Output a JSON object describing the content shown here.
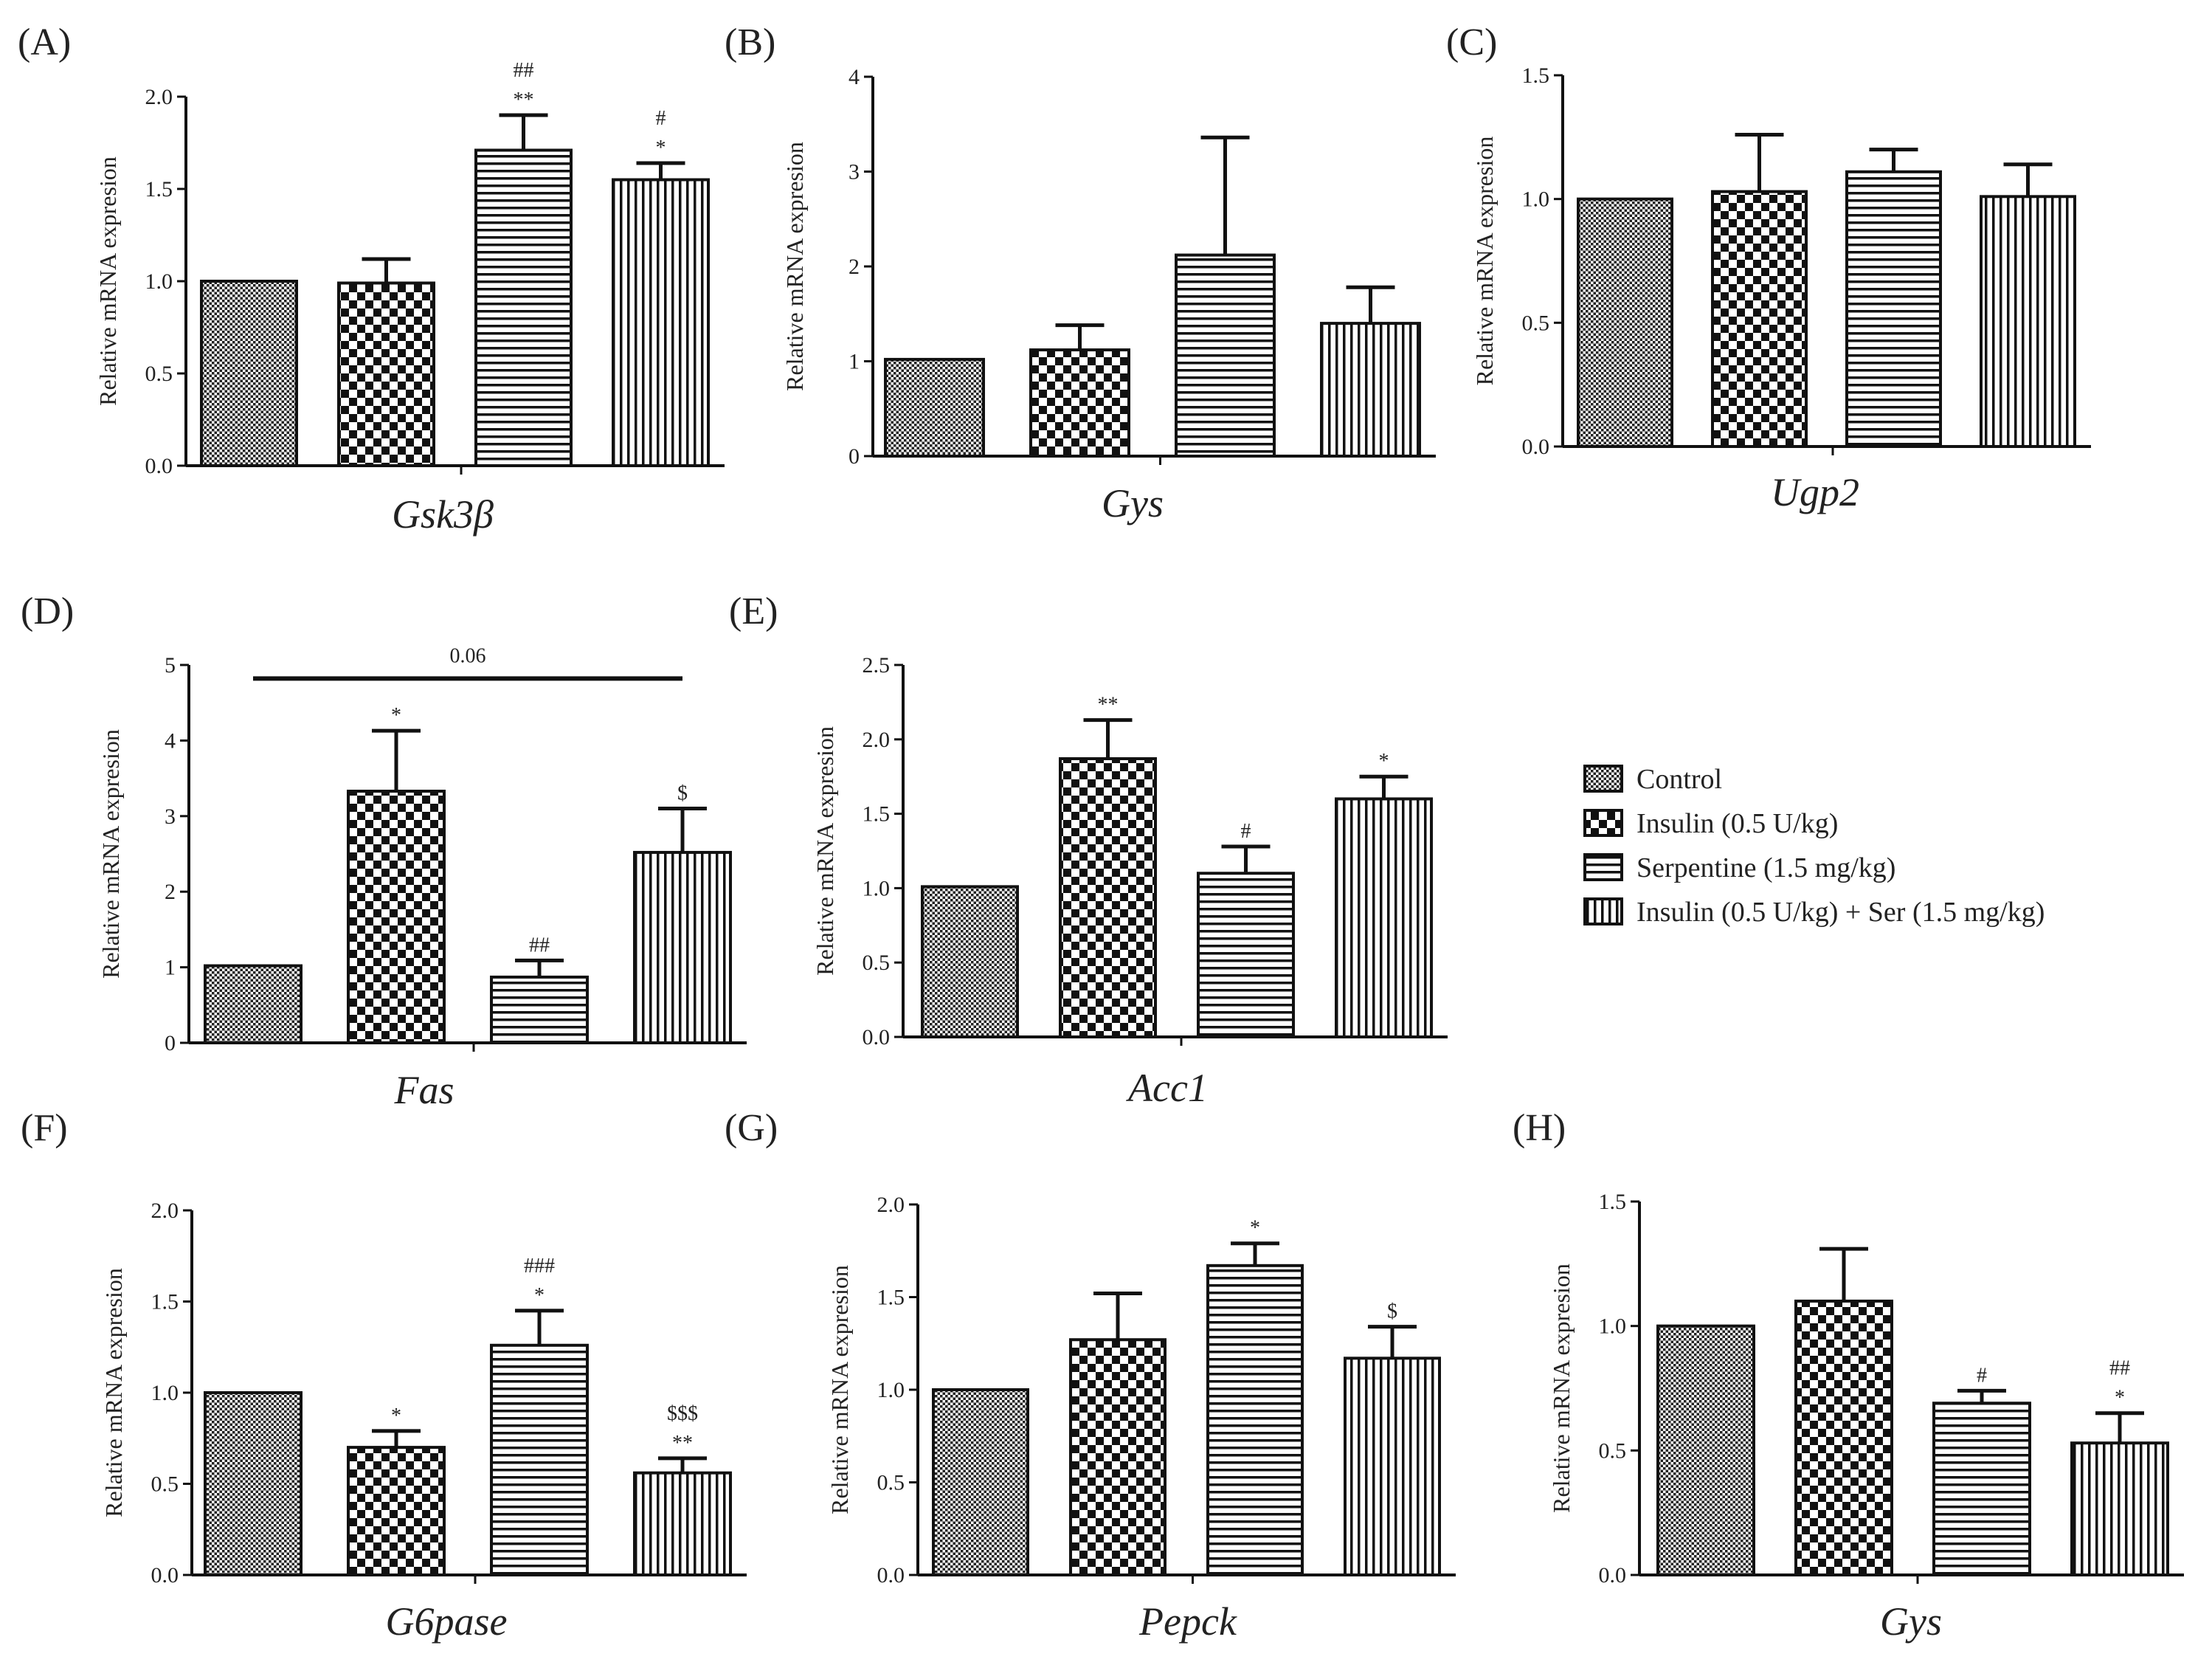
{
  "figure": {
    "ylabel": "Relative mRNA expresion"
  },
  "legend": [
    {
      "name": "Control",
      "pattern": "fine-check"
    },
    {
      "name": "Insulin (0.5 U/kg)",
      "pattern": "checker"
    },
    {
      "name": "Serpentine (1.5 mg/kg)",
      "pattern": "horizontal"
    },
    {
      "name": "Insulin (0.5 U/kg) + Ser (1.5 mg/kg)",
      "pattern": "vertical"
    }
  ],
  "chart_data": [
    {
      "panel": "(A)",
      "type": "bar",
      "gene": "Gsk3β",
      "ylabel": "Relative mRNA expresion",
      "ylim": [
        0,
        2.0
      ],
      "yticks": [
        "0.0",
        "0.5",
        "1.0",
        "1.5",
        "2.0"
      ],
      "categories": [
        "Control",
        "Insulin (0.5 U/kg)",
        "Serpentine (1.5 mg/kg)",
        "Insulin (0.5 U/kg) + Ser (1.5 mg/kg)"
      ],
      "values": [
        1.0,
        0.99,
        1.71,
        1.55
      ],
      "errors": [
        0,
        0.13,
        0.19,
        0.09
      ],
      "significance": [
        "",
        "",
        "**\n##",
        "*\n#"
      ]
    },
    {
      "panel": "(B)",
      "type": "bar",
      "gene": "Gys",
      "ylabel": "Relative mRNA expresion",
      "ylim": [
        0,
        4
      ],
      "yticks": [
        "0",
        "1",
        "2",
        "3",
        "4"
      ],
      "categories": [
        "Control",
        "Insulin (0.5 U/kg)",
        "Serpentine (1.5 mg/kg)",
        "Insulin (0.5 U/kg) + Ser (1.5 mg/kg)"
      ],
      "values": [
        1.02,
        1.12,
        2.12,
        1.4
      ],
      "errors": [
        0,
        0.26,
        1.24,
        0.38
      ],
      "significance": [
        "",
        "",
        "",
        ""
      ]
    },
    {
      "panel": "(C)",
      "type": "bar",
      "gene": "Ugp2",
      "ylabel": "Relative mRNA expresion",
      "ylim": [
        0,
        1.5
      ],
      "yticks": [
        "0.0",
        "0.5",
        "1.0",
        "1.5"
      ],
      "categories": [
        "Control",
        "Insulin (0.5 U/kg)",
        "Serpentine (1.5 mg/kg)",
        "Insulin (0.5 U/kg) + Ser (1.5 mg/kg)"
      ],
      "values": [
        1.0,
        1.03,
        1.11,
        1.01
      ],
      "errors": [
        0,
        0.23,
        0.09,
        0.13
      ],
      "significance": [
        "",
        "",
        "",
        ""
      ]
    },
    {
      "panel": "(D)",
      "type": "bar",
      "gene": "Fas",
      "ylabel": "Relative mRNA expresion",
      "ylim": [
        0,
        5
      ],
      "yticks": [
        "0",
        "1",
        "2",
        "3",
        "4",
        "5"
      ],
      "categories": [
        "Control",
        "Insulin (0.5 U/kg)",
        "Serpentine (1.5 mg/kg)",
        "Insulin (0.5 U/kg) + Ser (1.5 mg/kg)"
      ],
      "values": [
        1.02,
        3.33,
        0.87,
        2.52
      ],
      "errors": [
        0,
        0.8,
        0.22,
        0.58
      ],
      "significance": [
        "",
        "*",
        "##",
        "$"
      ],
      "bracket": {
        "from": 0,
        "to": 3,
        "label": "0.06",
        "y": 4.82
      }
    },
    {
      "panel": "(E)",
      "type": "bar",
      "gene": "Acc1",
      "ylabel": "Relative mRNA expresion",
      "ylim": [
        0,
        2.5
      ],
      "yticks": [
        "0.0",
        "0.5",
        "1.0",
        "1.5",
        "2.0",
        "2.5"
      ],
      "categories": [
        "Control",
        "Insulin (0.5 U/kg)",
        "Serpentine (1.5 mg/kg)",
        "Insulin (0.5 U/kg) + Ser (1.5 mg/kg)"
      ],
      "values": [
        1.01,
        1.87,
        1.1,
        1.6
      ],
      "errors": [
        0,
        0.26,
        0.18,
        0.15
      ],
      "significance": [
        "",
        "**",
        "#",
        "*"
      ]
    },
    {
      "panel": "(F)",
      "type": "bar",
      "gene": "G6pase",
      "ylabel": "Relative mRNA expresion",
      "ylim": [
        0,
        2.0
      ],
      "yticks": [
        "0.0",
        "0.5",
        "1.0",
        "1.5",
        "2.0"
      ],
      "categories": [
        "Control",
        "Insulin (0.5 U/kg)",
        "Serpentine (1.5 mg/kg)",
        "Insulin (0.5 U/kg) + Ser (1.5 mg/kg)"
      ],
      "values": [
        1.0,
        0.7,
        1.26,
        0.56
      ],
      "errors": [
        0,
        0.09,
        0.19,
        0.08
      ],
      "significance": [
        "",
        "*",
        "*\n###",
        "**\n$$$"
      ]
    },
    {
      "panel": "(G)",
      "type": "bar",
      "gene": "Pepck",
      "ylabel": "Relative mRNA expresion",
      "ylim": [
        0,
        2.0
      ],
      "yticks": [
        "0.0",
        "0.5",
        "1.0",
        "1.5",
        "2.0"
      ],
      "categories": [
        "Control",
        "Insulin (0.5 U/kg)",
        "Serpentine (1.5 mg/kg)",
        "Insulin (0.5 U/kg) + Ser (1.5 mg/kg)"
      ],
      "values": [
        1.0,
        1.27,
        1.67,
        1.17
      ],
      "errors": [
        0,
        0.25,
        0.12,
        0.17
      ],
      "significance": [
        "",
        "",
        "*",
        "$"
      ]
    },
    {
      "panel": "(H)",
      "type": "bar",
      "gene": "Gys",
      "ylabel": "Relative mRNA expresion",
      "ylim": [
        0,
        1.5
      ],
      "yticks": [
        "0.0",
        "0.5",
        "1.0",
        "1.5"
      ],
      "categories": [
        "Control",
        "Insulin (0.5 U/kg)",
        "Serpentine (1.5 mg/kg)",
        "Insulin (0.5 U/kg) + Ser (1.5 mg/kg)"
      ],
      "values": [
        1.0,
        1.1,
        0.69,
        0.53
      ],
      "errors": [
        0,
        0.21,
        0.05,
        0.12
      ],
      "significance": [
        "",
        "",
        "#",
        "*\n##"
      ]
    }
  ]
}
